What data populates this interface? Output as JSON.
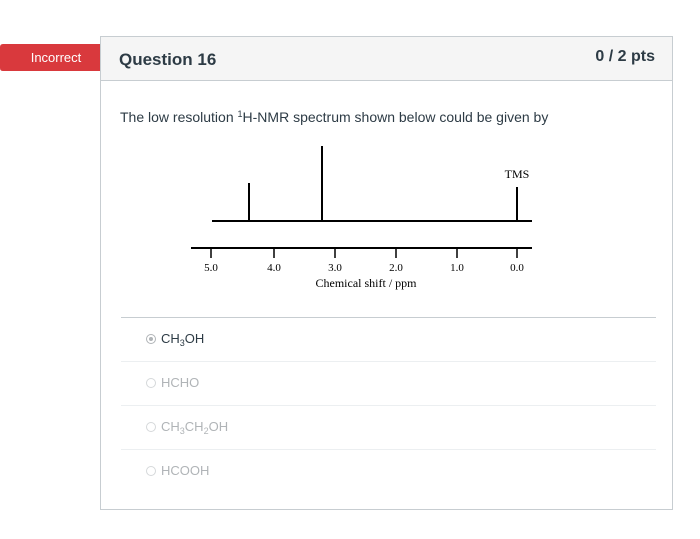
{
  "badge": {
    "label": "Incorrect",
    "color": "#d9393d"
  },
  "question": {
    "title": "Question 16",
    "points": "0 / 2 pts",
    "text_before": "The low resolution ",
    "text_sup": "1",
    "text_after": "H-NMR spectrum shown below could be given by"
  },
  "spectrum": {
    "tms_label": "TMS",
    "axis_label": "Chemical shift / ppm",
    "ticks": [
      "5.0",
      "4.0",
      "3.0",
      "2.0",
      "1.0",
      "0.0"
    ],
    "peaks_ppm": [
      4.4,
      3.2,
      0.0
    ],
    "relative_heights": [
      1,
      2,
      1
    ]
  },
  "answers": [
    {
      "pre": "CH",
      "sub1": "3",
      "mid": "OH",
      "sub2": "",
      "post": "",
      "selected": true
    },
    {
      "pre": "HCHO",
      "sub1": "",
      "mid": "",
      "sub2": "",
      "post": "",
      "selected": false
    },
    {
      "pre": "CH",
      "sub1": "3",
      "mid": "CH",
      "sub2": "2",
      "post": "OH",
      "selected": false
    },
    {
      "pre": "HCOOH",
      "sub1": "",
      "mid": "",
      "sub2": "",
      "post": "",
      "selected": false
    }
  ]
}
